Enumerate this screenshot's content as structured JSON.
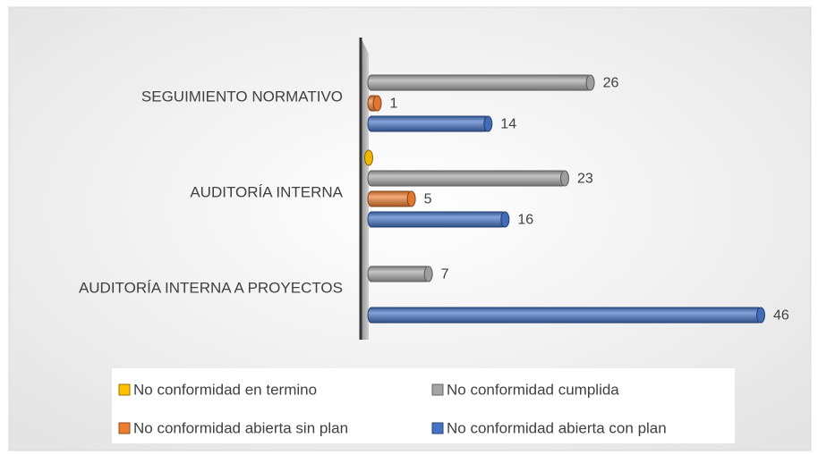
{
  "chart_data": {
    "type": "bar",
    "orientation": "horizontal",
    "categories": [
      "AUDITORÍA INTERNA A PROYECTOS",
      "AUDITORÍA INTERNA",
      "SEGUIMIENTO NORMATIVO"
    ],
    "series": [
      {
        "name": "No conformidad en termino",
        "color": "#ffc000",
        "values": [
          null,
          0,
          null
        ],
        "value_labels": [
          null,
          null,
          null
        ]
      },
      {
        "name": "No conformidad cumplida",
        "color": "#a5a5a5",
        "values": [
          7,
          23,
          26
        ]
      },
      {
        "name": "No conformidad abierta sin plan",
        "color": "#ed7d31",
        "values": [
          null,
          5,
          1
        ]
      },
      {
        "name": "No conformidad abierta con plan",
        "color": "#4472c4",
        "values": [
          46,
          16,
          14
        ]
      }
    ],
    "legend": "bottom"
  }
}
